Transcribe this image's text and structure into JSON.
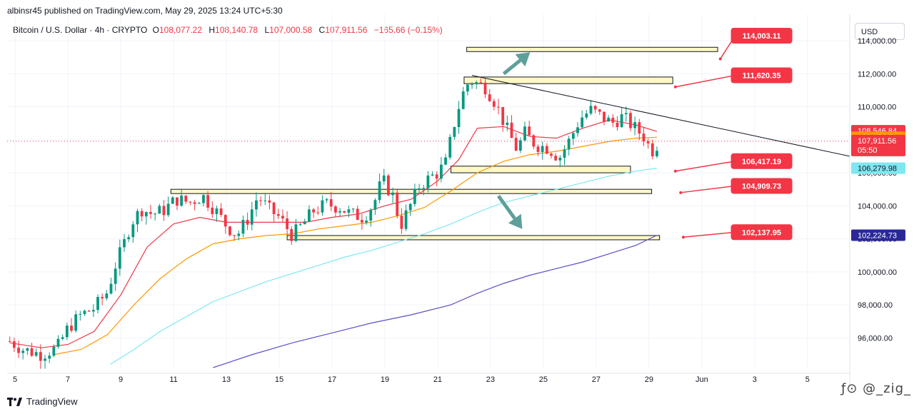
{
  "header": {
    "published": "albinsr45 published on TradingView.com, May 29, 2025 13:24 UTC+5:30"
  },
  "legend": {
    "symbol": "Bitcoin / U.S. Dollar · 4h · CRYPTO",
    "o_label": "O",
    "o_value": "108,077.22",
    "h_label": "H",
    "h_value": "108,140.78",
    "l_label": "L",
    "l_value": "107,000.58",
    "c_label": "C",
    "c_value": "107,911.56",
    "change": "−165.66 (−0.15%)"
  },
  "currency": "USD",
  "footer": {
    "logo_text": "TradingView"
  },
  "watermark": "ƒ⊙ @_zig_",
  "colors": {
    "up": "#089981",
    "down": "#f23645",
    "ema_red": "#f23645",
    "ema_orange": "#ff9800",
    "ema_cyan": "#7ee8f0",
    "ema_purple": "#5b50c9",
    "zone_fill": "#fff8c4",
    "arrow": "#5f9f9a",
    "callout": "#f23645",
    "trendline": "#131722"
  },
  "chart_data": {
    "type": "candlestick",
    "timeframe": "4h",
    "x_ticks": [
      "5",
      "7",
      "9",
      "11",
      "13",
      "15",
      "17",
      "19",
      "21",
      "23",
      "25",
      "27",
      "29",
      "Jun",
      "3",
      "5"
    ],
    "y_ticks": [
      "96,000.00",
      "98,000.00",
      "100,000.00",
      "102,000.00",
      "104,000.00",
      "106,000.00",
      "108,000.00",
      "110,000.00",
      "112,000.00",
      "114,000.00"
    ],
    "y_tick_values": [
      96000,
      98000,
      100000,
      102000,
      104000,
      106000,
      108000,
      110000,
      112000,
      114000
    ],
    "ylim": [
      94200,
      115600
    ],
    "x_range_days": [
      4.7,
      36.6
    ],
    "price_path": [
      [
        4.8,
        95.8
      ],
      [
        5.3,
        95.3
      ],
      [
        6.0,
        95.0
      ],
      [
        6.6,
        95.4
      ],
      [
        7.0,
        96.6
      ],
      [
        7.5,
        97.4
      ],
      [
        8.0,
        97.8
      ],
      [
        8.5,
        98.8
      ],
      [
        8.8,
        100.4
      ],
      [
        9.1,
        101.6
      ],
      [
        9.4,
        103.0
      ],
      [
        9.8,
        103.8
      ],
      [
        10.2,
        103.5
      ],
      [
        10.6,
        103.7
      ],
      [
        11.1,
        104.4
      ],
      [
        11.6,
        104.2
      ],
      [
        12.1,
        104.6
      ],
      [
        12.6,
        103.7
      ],
      [
        13.0,
        102.8
      ],
      [
        13.4,
        102.2
      ],
      [
        13.8,
        103.2
      ],
      [
        14.2,
        104.6
      ],
      [
        14.6,
        103.8
      ],
      [
        15.0,
        103.3
      ],
      [
        15.5,
        102.2
      ],
      [
        15.9,
        102.9
      ],
      [
        16.3,
        103.7
      ],
      [
        16.8,
        104.1
      ],
      [
        17.3,
        103.9
      ],
      [
        17.7,
        103.5
      ],
      [
        18.2,
        103.3
      ],
      [
        18.6,
        104.2
      ],
      [
        18.9,
        105.6
      ],
      [
        19.3,
        104.6
      ],
      [
        19.6,
        102.8
      ],
      [
        19.9,
        103.8
      ],
      [
        20.3,
        105.2
      ],
      [
        20.7,
        105.7
      ],
      [
        21.0,
        106.0
      ],
      [
        21.3,
        106.6
      ],
      [
        21.6,
        108.8
      ],
      [
        21.9,
        110.6
      ],
      [
        22.2,
        111.6
      ],
      [
        22.5,
        111.4
      ],
      [
        22.8,
        111.2
      ],
      [
        23.2,
        110.2
      ],
      [
        23.6,
        108.7
      ],
      [
        24.0,
        107.4
      ],
      [
        24.3,
        108.4
      ],
      [
        24.7,
        107.7
      ],
      [
        25.2,
        107.5
      ],
      [
        25.6,
        106.9
      ],
      [
        26.0,
        108.0
      ],
      [
        26.4,
        109.3
      ],
      [
        26.8,
        109.8
      ],
      [
        27.2,
        109.4
      ],
      [
        27.6,
        109.0
      ],
      [
        28.0,
        109.4
      ],
      [
        28.4,
        108.8
      ],
      [
        28.8,
        108.2
      ],
      [
        29.1,
        107.3
      ],
      [
        29.4,
        107.9
      ]
    ],
    "ema_red": [
      [
        4.8,
        95.7
      ],
      [
        6,
        95.4
      ],
      [
        7,
        95.6
      ],
      [
        8,
        96.4
      ],
      [
        9,
        98.6
      ],
      [
        10,
        101.5
      ],
      [
        11,
        102.9
      ],
      [
        12,
        103.3
      ],
      [
        13,
        103.0
      ],
      [
        14,
        103.0
      ],
      [
        15,
        103.0
      ],
      [
        16,
        103.0
      ],
      [
        17,
        103.3
      ],
      [
        18,
        103.5
      ],
      [
        19,
        104.0
      ],
      [
        20,
        104.4
      ],
      [
        21,
        105.5
      ],
      [
        21.8,
        106.8
      ],
      [
        22.5,
        108.7
      ],
      [
        23.5,
        108.8
      ],
      [
        24.5,
        108.2
      ],
      [
        25.5,
        108.1
      ],
      [
        26.5,
        108.7
      ],
      [
        27.5,
        109.2
      ],
      [
        28.5,
        108.9
      ],
      [
        29.3,
        108.5
      ]
    ],
    "ema_orange": [
      [
        6.5,
        95.0
      ],
      [
        7.5,
        95.3
      ],
      [
        8.5,
        96.2
      ],
      [
        9.5,
        98.0
      ],
      [
        10.5,
        99.6
      ],
      [
        11.5,
        100.8
      ],
      [
        12.5,
        101.7
      ],
      [
        13.5,
        102.0
      ],
      [
        14.5,
        102.2
      ],
      [
        15.5,
        102.3
      ],
      [
        16.5,
        102.6
      ],
      [
        17.5,
        102.8
      ],
      [
        18.5,
        103.0
      ],
      [
        19.5,
        103.4
      ],
      [
        20.5,
        103.9
      ],
      [
        21.5,
        104.9
      ],
      [
        22.5,
        106.0
      ],
      [
        23.5,
        106.7
      ],
      [
        24.5,
        107.1
      ],
      [
        25.5,
        107.3
      ],
      [
        26.5,
        107.6
      ],
      [
        27.5,
        107.9
      ],
      [
        28.5,
        108.1
      ],
      [
        29.3,
        108.15
      ]
    ],
    "ema_cyan": [
      [
        8.6,
        94.4
      ],
      [
        9.5,
        95.3
      ],
      [
        10.5,
        96.4
      ],
      [
        11.5,
        97.3
      ],
      [
        12.5,
        98.2
      ],
      [
        13.5,
        98.8
      ],
      [
        14.5,
        99.4
      ],
      [
        15.5,
        99.9
      ],
      [
        16.5,
        100.4
      ],
      [
        17.5,
        100.9
      ],
      [
        18.5,
        101.3
      ],
      [
        19.5,
        101.8
      ],
      [
        20.5,
        102.3
      ],
      [
        21.5,
        102.9
      ],
      [
        22.5,
        103.6
      ],
      [
        23.5,
        104.2
      ],
      [
        24.5,
        104.6
      ],
      [
        25.5,
        105.0
      ],
      [
        26.5,
        105.4
      ],
      [
        27.5,
        105.8
      ],
      [
        28.5,
        106.1
      ],
      [
        29.3,
        106.28
      ]
    ],
    "ema_purple": [
      [
        12.5,
        94.2
      ],
      [
        14,
        95.0
      ],
      [
        15.5,
        95.7
      ],
      [
        17,
        96.3
      ],
      [
        18.5,
        96.9
      ],
      [
        20,
        97.4
      ],
      [
        21.5,
        98.0
      ],
      [
        22.5,
        98.7
      ],
      [
        23.5,
        99.3
      ],
      [
        24.5,
        99.8
      ],
      [
        25.5,
        100.2
      ],
      [
        26.5,
        100.6
      ],
      [
        27.5,
        101.1
      ],
      [
        28.5,
        101.6
      ],
      [
        29.3,
        102.22
      ]
    ],
    "zones": [
      {
        "from": 22.1,
        "to": 31.6,
        "low": 113.4,
        "high": 113.6
      },
      {
        "from": 22.0,
        "to": 29.9,
        "low": 111.4,
        "high": 111.8
      },
      {
        "from": 21.5,
        "to": 28.3,
        "low": 106.0,
        "high": 106.4
      },
      {
        "from": 10.9,
        "to": 29.1,
        "low": 104.8,
        "high": 105.0
      },
      {
        "from": 15.3,
        "to": 29.4,
        "low": 102.0,
        "high": 102.2
      }
    ],
    "trendline": [
      [
        22.3,
        111.9
      ],
      [
        36.6,
        107.0
      ]
    ],
    "arrows": [
      {
        "from": [
          23.5,
          112.0
        ],
        "to": [
          24.5,
          113.3
        ]
      },
      {
        "from": [
          23.3,
          104.6
        ],
        "to": [
          24.2,
          102.6
        ]
      }
    ],
    "callouts": [
      {
        "label": "114,003.11",
        "x": 32.1,
        "price": 114.0,
        "anchor": [
          31.7,
          112.9
        ]
      },
      {
        "label": "111,620.35",
        "x": 32.1,
        "price": 111.6,
        "anchor": [
          30.0,
          111.2
        ]
      },
      {
        "label": "106,417.19",
        "x": 32.1,
        "price": 106.4,
        "anchor": [
          30.0,
          106.1
        ]
      },
      {
        "label": "104,909.73",
        "x": 32.1,
        "price": 104.9,
        "anchor": [
          30.2,
          104.8
        ]
      },
      {
        "label": "102,137.95",
        "x": 32.1,
        "price": 102.1,
        "anchor": [
          30.3,
          102.1
        ]
      }
    ],
    "price_badges": [
      {
        "label": "108,546.84",
        "price": 108.546,
        "color": "#f23645"
      },
      {
        "label": "108,154.71",
        "price": 108.155,
        "color": "#ff9800"
      },
      {
        "label": "107,911.56",
        "price": 107.65,
        "color": "#f23645",
        "sub": "05:50"
      },
      {
        "label": "106,279.98",
        "price": 106.28,
        "color": "#7ee8f0",
        "dark": true
      },
      {
        "label": "102,224.73",
        "price": 102.22,
        "color": "#2a2899"
      }
    ],
    "last_price": 107.911
  }
}
